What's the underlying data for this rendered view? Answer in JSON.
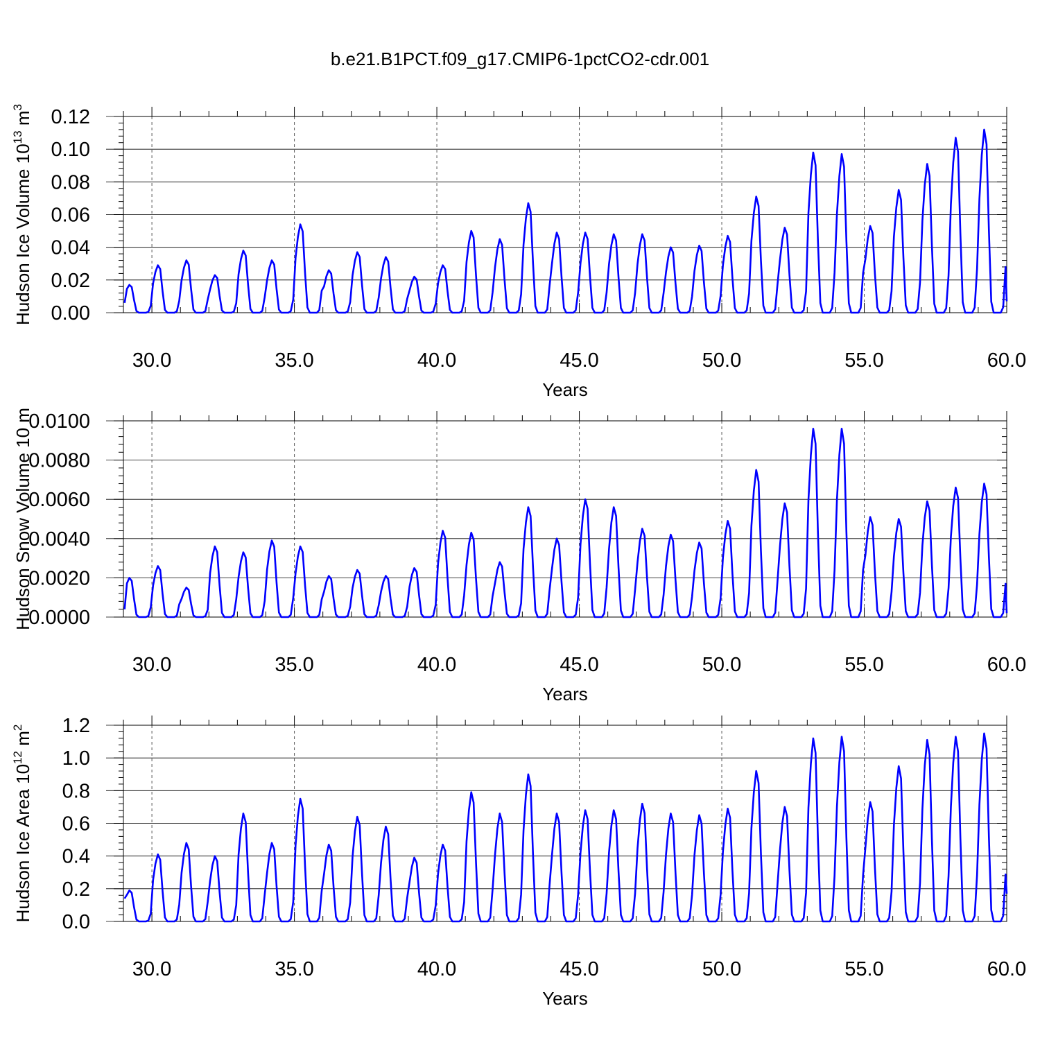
{
  "title": "b.e21.B1PCT.f09_g17.CMIP6-1pctCO2-cdr.001",
  "colors": {
    "line": "#0000ff",
    "axis": "#000000",
    "grid": "#555555"
  },
  "chart_data": [
    {
      "type": "line",
      "ylabel": "Hudson Ice Volume 10",
      "ylabel_exp": "13",
      "ylabel_unit": " m",
      "ylabel_unit_exp": "3",
      "xlabel": "Years",
      "xlim": [
        29.0,
        60.0
      ],
      "ylim": [
        0.0,
        0.12
      ],
      "xticks": [
        30,
        35,
        40,
        45,
        50,
        55,
        60
      ],
      "xtick_labels": [
        "30.0",
        "35.0",
        "40.0",
        "45.0",
        "50.0",
        "55.0",
        "60.0"
      ],
      "yticks": [
        0.0,
        0.02,
        0.04,
        0.06,
        0.08,
        0.1,
        0.12
      ],
      "ytick_labels": [
        "0.00",
        "0.02",
        "0.04",
        "0.06",
        "0.08",
        "0.10",
        "0.12"
      ],
      "vgrid": [
        30,
        35,
        40,
        45,
        50,
        55
      ],
      "start_year": 29.0,
      "winter_low": 0.006,
      "end_value": 0.007,
      "peaks": [
        0.017,
        0.029,
        0.032,
        0.023,
        0.038,
        0.032,
        0.054,
        0.026,
        0.037,
        0.034,
        0.022,
        0.029,
        0.05,
        0.045,
        0.067,
        0.049,
        0.049,
        0.048,
        0.048,
        0.04,
        0.041,
        0.047,
        0.071,
        0.052,
        0.098,
        0.097,
        0.053,
        0.075,
        0.091,
        0.107,
        0.112
      ]
    },
    {
      "type": "line",
      "ylabel": "Hudson Snow Volume 10",
      "ylabel_exp": "",
      "ylabel_unit": " m",
      "ylabel_unit_exp": "",
      "xlabel": "Years",
      "xlim": [
        29.0,
        60.0
      ],
      "ylim": [
        0.0,
        0.01
      ],
      "xticks": [
        30,
        35,
        40,
        45,
        50,
        55,
        60
      ],
      "xtick_labels": [
        "30.0",
        "35.0",
        "40.0",
        "45.0",
        "50.0",
        "55.0",
        "60.0"
      ],
      "yticks": [
        0.0,
        0.002,
        0.004,
        0.006,
        0.008,
        0.01
      ],
      "ytick_labels": [
        "0.0000",
        "0.0020",
        "0.0040",
        "0.0060",
        "0.0080",
        "0.0100"
      ],
      "vgrid": [
        30,
        35,
        40,
        45,
        50,
        55
      ],
      "start_year": 29.0,
      "winter_low": 0.0004,
      "end_value": 0.0002,
      "peaks": [
        0.002,
        0.0026,
        0.0015,
        0.0036,
        0.0033,
        0.0039,
        0.0036,
        0.0021,
        0.0024,
        0.0021,
        0.0025,
        0.0044,
        0.0043,
        0.0028,
        0.0056,
        0.004,
        0.006,
        0.0056,
        0.0045,
        0.0042,
        0.0038,
        0.0049,
        0.0075,
        0.0058,
        0.0096,
        0.0096,
        0.0051,
        0.005,
        0.0059,
        0.0066,
        0.0068
      ]
    },
    {
      "type": "line",
      "ylabel": "Hudson Ice Area 10",
      "ylabel_exp": "12",
      "ylabel_unit": " m",
      "ylabel_unit_exp": "2",
      "xlabel": "Years",
      "xlim": [
        29.0,
        60.0
      ],
      "ylim": [
        0.0,
        1.2
      ],
      "xticks": [
        30,
        35,
        40,
        45,
        50,
        55,
        60
      ],
      "xtick_labels": [
        "30.0",
        "35.0",
        "40.0",
        "45.0",
        "50.0",
        "55.0",
        "60.0"
      ],
      "yticks": [
        0.0,
        0.2,
        0.4,
        0.6,
        0.8,
        1.0,
        1.2
      ],
      "ytick_labels": [
        "0.0",
        "0.2",
        "0.4",
        "0.6",
        "0.8",
        "1.0",
        "1.2"
      ],
      "vgrid": [
        30,
        35,
        40,
        45,
        50,
        55
      ],
      "start_year": 29.0,
      "winter_low": 0.14,
      "end_value": 0.17,
      "peaks": [
        0.19,
        0.41,
        0.48,
        0.4,
        0.66,
        0.48,
        0.75,
        0.47,
        0.64,
        0.58,
        0.39,
        0.47,
        0.79,
        0.66,
        0.9,
        0.66,
        0.68,
        0.68,
        0.72,
        0.66,
        0.65,
        0.69,
        0.92,
        0.7,
        1.12,
        1.13,
        0.73,
        0.95,
        1.11,
        1.13,
        1.15
      ]
    }
  ]
}
